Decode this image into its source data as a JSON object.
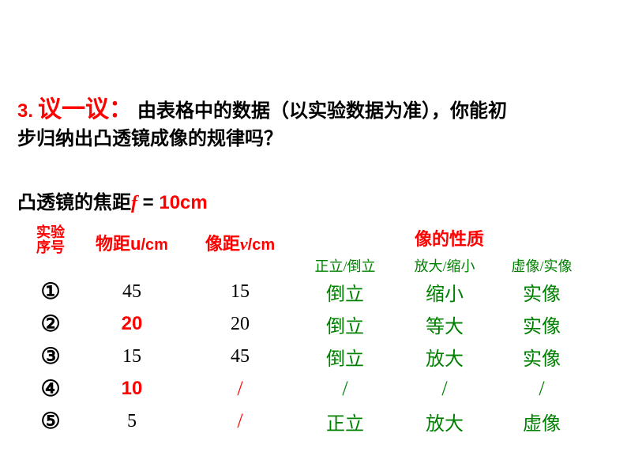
{
  "heading": {
    "num_prefix": "3.",
    "title": "议一议：",
    "body1": "由表格中的数据（以实验数据为准），你能初",
    "body2": "步归纳出凸透镜成像的规律吗？"
  },
  "focus": {
    "label_pre": "凸透镜的焦距",
    "var": "f",
    "eq": "  = ",
    "value": "10cm"
  },
  "headers": {
    "seq": "实验\n序号",
    "u_label": "物距",
    "u_var": "u",
    "u_unit": "/cm",
    "v_label": "像距",
    "v_var": "v",
    "v_unit": "/cm",
    "nature": "像的性质",
    "sub_ori": "正立/倒立",
    "sub_size": "放大/缩小",
    "sub_type": "虚像/实像"
  },
  "rows": [
    {
      "seq": "①",
      "u": "45",
      "u_red": false,
      "v": "15",
      "v_red": false,
      "ori": "倒立",
      "size": "缩小",
      "type": "实像"
    },
    {
      "seq": "②",
      "u": "20",
      "u_red": true,
      "v": "20",
      "v_red": false,
      "ori": "倒立",
      "size": "等大",
      "type": "实像"
    },
    {
      "seq": "③",
      "u": "15",
      "u_red": false,
      "v": "45",
      "v_red": false,
      "ori": "倒立",
      "size": "放大",
      "type": "实像"
    },
    {
      "seq": "④",
      "u": "10",
      "u_red": true,
      "v": "/",
      "v_red": true,
      "ori": "/",
      "size": "/",
      "type": "/"
    },
    {
      "seq": "⑤",
      "u": "5",
      "u_red": false,
      "v": "/",
      "v_red": true,
      "ori": "正立",
      "size": "放大",
      "type": "虚像"
    }
  ],
  "colors": {
    "red": "#ff0000",
    "green": "#008000",
    "black": "#000000",
    "background": "#ffffff"
  }
}
